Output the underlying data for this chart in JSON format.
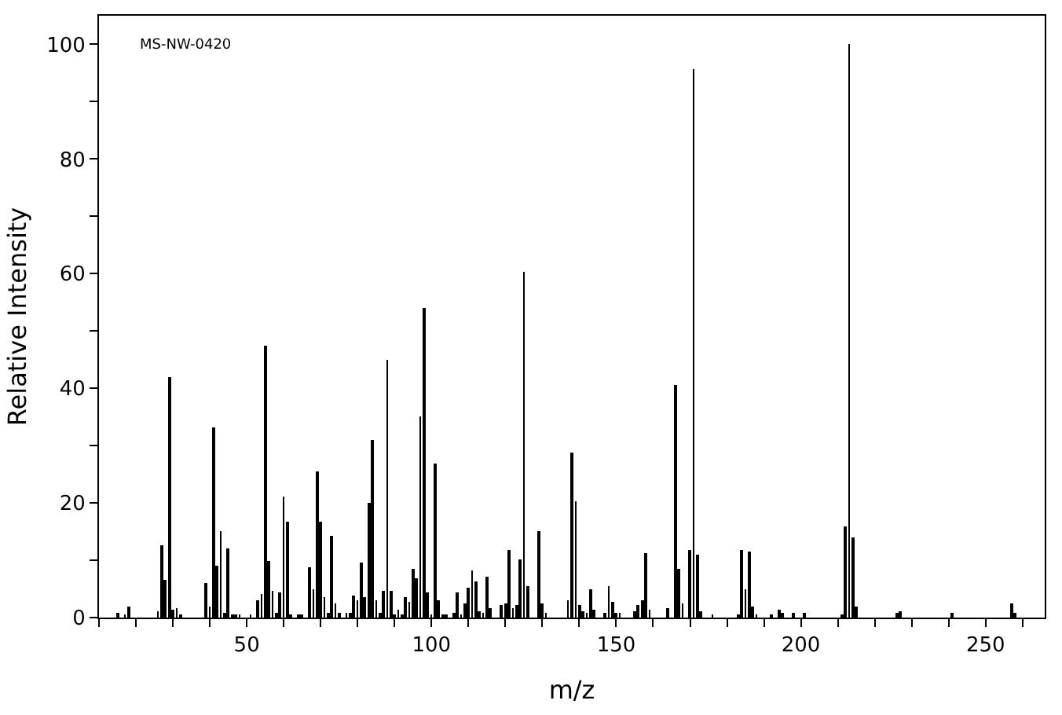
{
  "chart_data": {
    "type": "bar",
    "xlabel": "m/z",
    "ylabel": "Relative Intensity",
    "annotations": [
      "MS-NW-0420"
    ],
    "x": [
      15,
      17,
      18,
      26,
      27,
      28,
      29,
      30,
      31,
      32,
      39,
      40,
      41,
      42,
      43,
      44,
      45,
      46,
      47,
      48,
      51,
      53,
      54,
      55,
      56,
      57,
      58,
      59,
      60,
      61,
      62,
      64,
      65,
      67,
      68,
      69,
      70,
      71,
      72,
      73,
      74,
      75,
      77,
      78,
      79,
      80,
      81,
      82,
      83,
      84,
      85,
      86,
      87,
      88,
      89,
      90,
      91,
      92,
      93,
      94,
      95,
      96,
      97,
      98,
      99,
      100,
      101,
      102,
      103,
      104,
      106,
      107,
      108,
      109,
      110,
      111,
      112,
      113,
      114,
      115,
      116,
      119,
      120,
      121,
      122,
      123,
      124,
      125,
      126,
      129,
      130,
      131,
      137,
      138,
      139,
      140,
      141,
      142,
      143,
      144,
      147,
      148,
      149,
      150,
      151,
      155,
      156,
      157,
      158,
      159,
      164,
      166,
      167,
      168,
      170,
      171,
      172,
      173,
      176,
      183,
      184,
      185,
      186,
      187,
      188,
      192,
      194,
      195,
      198,
      201,
      211,
      212,
      213,
      214,
      215,
      226,
      227,
      241,
      257,
      258
    ],
    "values": [
      0.9,
      0.5,
      2.0,
      1.2,
      12.7,
      6.5,
      41.9,
      1.3,
      1.7,
      0.4,
      6.0,
      2.0,
      33.2,
      9.1,
      15.1,
      0.9,
      12.1,
      0.4,
      0.4,
      0.4,
      0.4,
      3.1,
      4.2,
      47.4,
      10.0,
      4.7,
      0.9,
      4.3,
      21.1,
      16.8,
      0.6,
      0.6,
      0.6,
      8.7,
      5.0,
      25.5,
      16.6,
      3.6,
      0.7,
      14.3,
      2.6,
      0.7,
      0.7,
      0.7,
      3.9,
      3.1,
      9.7,
      3.6,
      19.9,
      31.0,
      2.9,
      0.7,
      4.7,
      45.0,
      4.7,
      0.4,
      1.3,
      0.6,
      3.6,
      2.8,
      8.6,
      6.9,
      35.1,
      53.9,
      4.5,
      0.6,
      26.9,
      3.1,
      0.6,
      0.6,
      0.9,
      4.5,
      0.6,
      2.6,
      5.3,
      8.3,
      6.4,
      1.2,
      0.9,
      7.2,
      1.7,
      2.3,
      2.6,
      11.9,
      1.7,
      2.3,
      10.2,
      60.2,
      5.6,
      15.1,
      2.6,
      0.9,
      3.1,
      28.8,
      20.3,
      2.3,
      1.2,
      0.9,
      5.0,
      1.5,
      0.9,
      5.6,
      2.8,
      0.9,
      0.9,
      1.2,
      2.3,
      3.1,
      11.3,
      1.5,
      1.7,
      40.6,
      8.6,
      2.6,
      11.9,
      95.6,
      11.0,
      1.2,
      0.6,
      0.6,
      11.9,
      5.0,
      11.6,
      1.8,
      0.4,
      0.4,
      1.3,
      0.8,
      0.9,
      0.9,
      0.6,
      16.0,
      100,
      13.9,
      1.8,
      0.8,
      1.1,
      0.7,
      2.6,
      0.7
    ],
    "color": "#000000",
    "xlim": [
      10,
      266
    ],
    "xticks": [
      {
        "value": 10,
        "label": null
      },
      {
        "value": 20,
        "label": null
      },
      {
        "value": 30,
        "label": null
      },
      {
        "value": 40,
        "label": null
      },
      50,
      {
        "value": 60,
        "label": null
      },
      {
        "value": 70,
        "label": null
      },
      {
        "value": 80,
        "label": null
      },
      {
        "value": 90,
        "label": null
      },
      100,
      {
        "value": 110,
        "label": null
      },
      {
        "value": 120,
        "label": null
      },
      {
        "value": 130,
        "label": null
      },
      {
        "value": 140,
        "label": null
      },
      150,
      {
        "value": 160,
        "label": null
      },
      {
        "value": 170,
        "label": null
      },
      {
        "value": 180,
        "label": null
      },
      {
        "value": 190,
        "label": null
      },
      200,
      {
        "value": 210,
        "label": null
      },
      {
        "value": 220,
        "label": null
      },
      {
        "value": 230,
        "label": null
      },
      {
        "value": 240,
        "label": null
      },
      250,
      {
        "value": 260,
        "label": null
      }
    ],
    "ylim": [
      0,
      105
    ],
    "yticks": [
      0,
      {
        "value": 10,
        "label": null
      },
      20,
      {
        "value": 30,
        "label": null
      },
      40,
      {
        "value": 50,
        "label": null
      },
      60,
      {
        "value": 70,
        "label": null
      },
      80,
      {
        "value": 90,
        "label": null
      },
      100
    ],
    "marker": "none"
  }
}
